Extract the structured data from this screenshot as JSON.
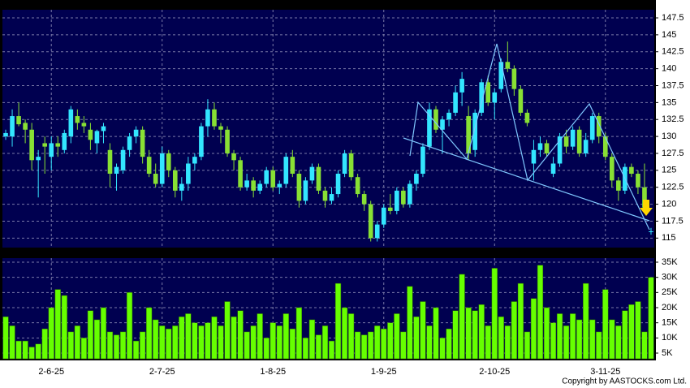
{
  "chart_data": [
    {
      "type": "candlestick",
      "up_color": "#33e6ff",
      "down_color": "#88e034",
      "grid": true,
      "ylim": [
        113.6,
        148.7
      ],
      "yticks": [
        115,
        117.5,
        120,
        122.5,
        125,
        127.5,
        130,
        132.5,
        135,
        137.5,
        140,
        142.5,
        145,
        147.5
      ],
      "open": [
        130,
        130,
        133,
        132,
        131,
        126.5,
        129,
        127,
        129,
        128,
        130,
        133,
        132,
        131,
        129,
        130.8,
        128,
        124.5,
        125,
        128,
        130,
        131,
        127,
        124.5,
        123,
        127.5,
        125,
        122,
        123,
        126,
        127,
        131.5,
        134,
        131.5,
        131,
        127.5,
        126.5,
        122.5,
        123.5,
        122,
        123,
        125,
        122.5,
        123,
        127,
        124.5,
        120.5,
        123.5,
        125.5,
        122,
        120.5,
        121.5,
        124.5,
        127.5,
        124,
        121.5,
        120,
        115,
        117,
        119.5,
        119,
        122,
        120,
        123,
        124.5,
        128.5,
        134,
        131,
        132.5,
        133.5,
        136.5,
        133,
        128,
        133.5,
        138,
        135,
        137,
        141,
        140,
        137,
        133.5,
        126,
        128,
        129,
        124.5,
        126,
        130,
        128.5,
        131,
        127.5,
        129.5,
        133,
        130,
        127,
        123.5,
        122,
        125.5,
        124.5,
        122.5,
        116
      ],
      "high": [
        131,
        134,
        135,
        132.5,
        132,
        128,
        130,
        130,
        130,
        131,
        134.5,
        134,
        133,
        132,
        131,
        132,
        129,
        126,
        128.5,
        130.5,
        131.5,
        131.5,
        128,
        126,
        128.5,
        128,
        125.5,
        124,
        127,
        127.5,
        132,
        135.5,
        135,
        132,
        131.5,
        128,
        127,
        124.5,
        124,
        123.5,
        125.5,
        125.5,
        123.5,
        127.5,
        128,
        125,
        124,
        126,
        126,
        122.5,
        122.5,
        125,
        128,
        128,
        124.5,
        122,
        120.5,
        117.5,
        120,
        121.5,
        122.5,
        122.5,
        123.5,
        125,
        129,
        135,
        134.5,
        133,
        134,
        137.5,
        139.5,
        134.5,
        134,
        138.5,
        139,
        137,
        141.5,
        144,
        140.5,
        137.5,
        134,
        129.5,
        130,
        129.5,
        127,
        130.5,
        131,
        131.5,
        131.5,
        130.5,
        133.5,
        133.5,
        130.5,
        127.5,
        124,
        126,
        126,
        125,
        126,
        116.5
      ],
      "low": [
        129.5,
        128.5,
        131.5,
        129,
        125,
        121,
        124.5,
        125,
        127,
        127.5,
        129,
        131,
        130.5,
        128,
        127.5,
        129,
        122.5,
        122,
        124.5,
        127,
        129,
        126,
        124,
        122.5,
        122.5,
        124,
        121,
        120.5,
        122,
        125,
        126.5,
        130,
        131,
        129,
        127,
        125,
        122,
        122,
        121,
        121.5,
        122.5,
        122,
        121.5,
        122.5,
        124,
        119.5,
        120,
        123,
        121.5,
        119.5,
        120,
        121,
        124,
        123.5,
        121,
        119,
        114.5,
        114.5,
        116.5,
        118.5,
        118.5,
        119.5,
        119.5,
        122,
        124,
        128,
        130.5,
        127.5,
        131.5,
        133,
        134.5,
        126.5,
        127,
        133,
        134.5,
        132.5,
        136.5,
        139.5,
        136,
        133,
        131.5,
        123.5,
        127,
        127,
        124,
        125.5,
        127.5,
        128,
        127,
        127,
        129,
        129,
        126.5,
        122.5,
        120.5,
        121.5,
        124,
        121.5,
        119,
        115.5
      ],
      "close": [
        130.5,
        133,
        131.8,
        131,
        126.5,
        127,
        128.5,
        129,
        128.5,
        130.5,
        134,
        132,
        131.5,
        129.5,
        130.8,
        131.5,
        124.5,
        125.5,
        128,
        130,
        131,
        127,
        124.5,
        123,
        127.5,
        125,
        122,
        123,
        126,
        127,
        131.5,
        134,
        131.5,
        131,
        127.5,
        126.5,
        122.5,
        123.5,
        122,
        123,
        125,
        122.5,
        123,
        127,
        124.5,
        120.5,
        123.5,
        125.5,
        122,
        120.5,
        121.5,
        124.5,
        127.5,
        124,
        121.5,
        120,
        115,
        117,
        119.5,
        119,
        122,
        120,
        123,
        124.5,
        128.5,
        134,
        131,
        132.5,
        133.5,
        136.5,
        138.5,
        127.5,
        133.5,
        138,
        135,
        136.5,
        141,
        140,
        137,
        133.5,
        132,
        128,
        129,
        127.5,
        126,
        130,
        128.5,
        131,
        127.5,
        129.5,
        133,
        130,
        127,
        123.5,
        122,
        125.5,
        124.5,
        122.5,
        119.5,
        116
      ]
    },
    {
      "type": "bar",
      "color": "#66ff00",
      "ylim": [
        3125,
        36340
      ],
      "yticks": [
        {
          "value": 5000,
          "label": "5K"
        },
        {
          "value": 10000,
          "label": "10K"
        },
        {
          "value": 15000,
          "label": "15K"
        },
        {
          "value": 20000,
          "label": "20K"
        },
        {
          "value": 25000,
          "label": "25K"
        },
        {
          "value": 30000,
          "label": "30K"
        },
        {
          "value": 35000,
          "label": "35K"
        }
      ],
      "xticks": [
        {
          "value": 7,
          "label": "2-6-25"
        },
        {
          "value": 24,
          "label": "2-7-25"
        },
        {
          "value": 41,
          "label": "1-8-25"
        },
        {
          "value": 58,
          "label": "1-9-25"
        },
        {
          "value": 75,
          "label": "2-10-25"
        },
        {
          "value": 92,
          "label": "3-11-25"
        }
      ],
      "values": [
        17000,
        14000,
        9000,
        9000,
        7000,
        8000,
        13000,
        20000,
        26000,
        24000,
        12000,
        14000,
        10000,
        19000,
        16000,
        20000,
        12000,
        11000,
        12000,
        25000,
        9000,
        12000,
        20000,
        16000,
        14000,
        13000,
        14000,
        17000,
        18000,
        15000,
        14000,
        15000,
        17000,
        14000,
        22000,
        17000,
        19000,
        12000,
        14000,
        18000,
        10000,
        15000,
        14000,
        18000,
        13000,
        20000,
        10000,
        16000,
        11000,
        14000,
        9000,
        28000,
        20000,
        18000,
        12000,
        11000,
        12000,
        14000,
        13000,
        15000,
        18000,
        12000,
        27000,
        17000,
        22000,
        14000,
        20000,
        10000,
        13000,
        19000,
        31000,
        20000,
        19000,
        21000,
        14000,
        33000,
        17000,
        14000,
        22000,
        28000,
        12000,
        23000,
        34000,
        20000,
        15000,
        18000,
        14000,
        18000,
        16000,
        28000,
        16000,
        12000,
        26000,
        16000,
        14000,
        19000,
        21000,
        22000,
        12000,
        30000
      ]
    }
  ],
  "copyright": "Copyright by AASTOCKS.com Ltd."
}
